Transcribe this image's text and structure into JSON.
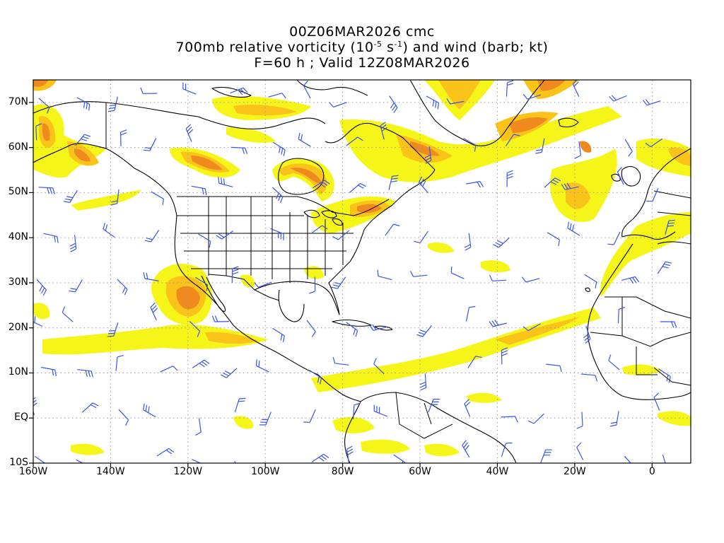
{
  "title": {
    "line1": "00Z06MAR2026 cmc",
    "line2_pre": "700mb relative vorticity (10",
    "line2_exp1": "-5",
    "line2_mid": " s",
    "line2_exp2": "-1",
    "line2_post": ") and wind (barb; kt)",
    "line3": "F=60 h ; Valid 12Z08MAR2026"
  },
  "axes": {
    "lat_labels": [
      "70N",
      "60N",
      "50N",
      "40N",
      "30N",
      "20N",
      "10N",
      "EQ",
      "10S"
    ],
    "lat_values": [
      70,
      60,
      50,
      40,
      30,
      20,
      10,
      0,
      -10
    ],
    "lon_labels": [
      "160W",
      "140W",
      "120W",
      "100W",
      "80W",
      "60W",
      "40W",
      "20W",
      "0"
    ],
    "lon_values": [
      -160,
      -140,
      -120,
      -100,
      -80,
      -60,
      -40,
      -20,
      0
    ],
    "lon_range": [
      -160,
      10
    ],
    "lat_range": [
      -10,
      75
    ],
    "grid": "dotted"
  },
  "colors": {
    "vorticity_low": "#f5f51a",
    "vorticity_mid": "#f9c31a",
    "vorticity_high": "#f08a1e",
    "vorticity_max": "#e0601e",
    "barb": "#3a54e8",
    "coast": "#000000",
    "grid": "#9a9a9a"
  }
}
